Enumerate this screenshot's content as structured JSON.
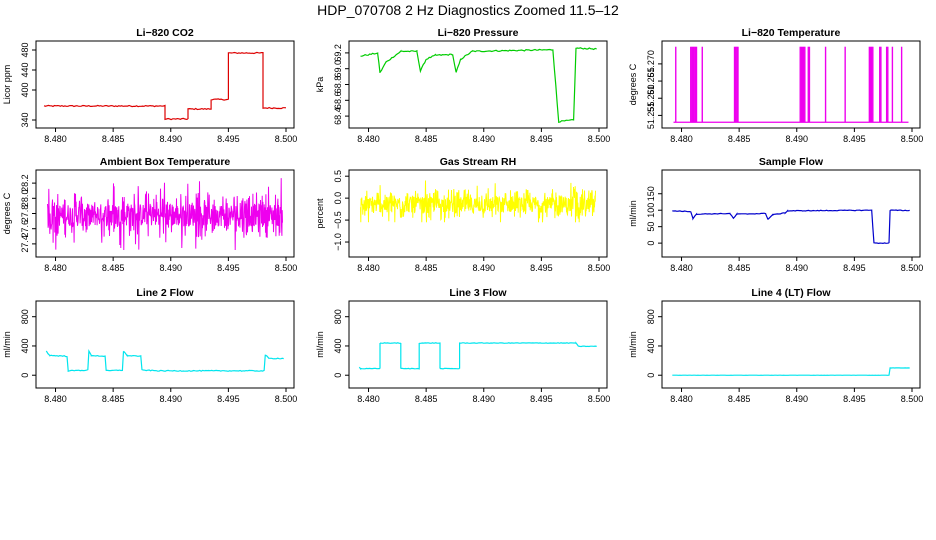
{
  "page": {
    "title": "HDP_070708  2 Hz Diagnostics Zoomed 11.5–12"
  },
  "chart_data": [
    {
      "type": "line",
      "title": "Li−820 CO2",
      "ylabel": "Licor ppm",
      "color": "#dd0000",
      "xlim": [
        8.479,
        8.5
      ],
      "ylim": [
        332,
        490
      ],
      "xticks": [
        8.48,
        8.485,
        8.49,
        8.495,
        8.5
      ],
      "xticklabels": [
        "8.480",
        "8.485",
        "8.490",
        "8.495",
        "8.500"
      ],
      "yticks": [
        340,
        400,
        440,
        480
      ],
      "yticklabels": [
        "340",
        "400",
        "440",
        "480"
      ],
      "noise": 1.2,
      "series": [
        {
          "points": [
            [
              8.479,
              368
            ],
            [
              8.4895,
              368
            ],
            [
              8.4895,
              342
            ],
            [
              8.4915,
              342
            ],
            [
              8.4915,
              362
            ],
            [
              8.4935,
              362
            ],
            [
              8.4935,
              381
            ],
            [
              8.495,
              381
            ],
            [
              8.495,
              474
            ],
            [
              8.498,
              474
            ],
            [
              8.498,
              364
            ],
            [
              8.5,
              364
            ]
          ]
        }
      ]
    },
    {
      "type": "line",
      "title": "Li−820 Pressure",
      "ylabel": "kPa",
      "color": "#00cc00",
      "xlim": [
        8.479,
        8.5
      ],
      "ylim": [
        68.3,
        69.3
      ],
      "xticks": [
        8.48,
        8.485,
        8.49,
        8.495,
        8.5
      ],
      "xticklabels": [
        "8.480",
        "8.485",
        "8.490",
        "8.495",
        "8.500"
      ],
      "yticks": [
        68.4,
        68.6,
        68.8,
        69.0,
        69.2
      ],
      "yticklabels": [
        "68.4",
        "68.6",
        "68.8",
        "69.0",
        "69.2"
      ],
      "noise": 0.008,
      "series": [
        {
          "points": [
            [
              8.4793,
              69.16
            ],
            [
              8.4805,
              69.19
            ],
            [
              8.4808,
              69.19
            ],
            [
              8.481,
              68.95
            ],
            [
              8.4815,
              69.08
            ],
            [
              8.4828,
              69.22
            ],
            [
              8.4842,
              69.22
            ],
            [
              8.4845,
              68.97
            ],
            [
              8.485,
              69.12
            ],
            [
              8.4858,
              69.17
            ],
            [
              8.4873,
              69.18
            ],
            [
              8.4876,
              68.95
            ],
            [
              8.488,
              69.12
            ],
            [
              8.489,
              69.22
            ],
            [
              8.496,
              69.24
            ],
            [
              8.4965,
              68.33
            ],
            [
              8.4978,
              68.35
            ],
            [
              8.498,
              69.26
            ],
            [
              8.4998,
              69.25
            ]
          ]
        }
      ]
    },
    {
      "type": "line",
      "title": "Li−820 Temperature",
      "ylabel": "degrees C",
      "color": "#ee00ee",
      "xlim": [
        8.479,
        8.5
      ],
      "ylim": [
        51.2525,
        51.2755
      ],
      "xticks": [
        8.48,
        8.485,
        8.49,
        8.495,
        8.5
      ],
      "xticklabels": [
        "8.480",
        "8.485",
        "8.490",
        "8.495",
        "8.500"
      ],
      "yticks": [
        51.255,
        51.26,
        51.265,
        51.27
      ],
      "yticklabels": [
        "51.255",
        "51.260",
        "51.265",
        "51.270"
      ],
      "base": 51.253,
      "spike_top": 51.275,
      "spikes": [
        8.4795,
        8.4808,
        8.4809,
        8.481,
        8.4811,
        8.4812,
        8.4813,
        8.4818,
        8.4846,
        8.4847,
        8.4848,
        8.4849,
        8.4903,
        8.4904,
        8.4905,
        8.4906,
        8.4907,
        8.491,
        8.4911,
        8.4925,
        8.4942,
        8.4963,
        8.4964,
        8.4965,
        8.4966,
        8.4972,
        8.4973,
        8.4978,
        8.4979,
        8.4983,
        8.4991
      ]
    },
    {
      "type": "line",
      "title": "Ambient Box Temperature",
      "ylabel": "degrees C",
      "color": "#ee00ee",
      "xlim": [
        8.479,
        8.5
      ],
      "ylim": [
        27.28,
        28.32
      ],
      "xticks": [
        8.48,
        8.485,
        8.49,
        8.495,
        8.5
      ],
      "xticklabels": [
        "8.480",
        "8.485",
        "8.490",
        "8.495",
        "8.500"
      ],
      "yticks": [
        27.4,
        27.6,
        27.8,
        28.0,
        28.2
      ],
      "yticklabels": [
        "27.4",
        "27.6",
        "27.8",
        "28.0",
        "28.2"
      ],
      "noise_band": [
        27.32,
        28.28
      ],
      "center": 27.78
    },
    {
      "type": "line",
      "title": "Gas Stream RH",
      "ylabel": "percent",
      "color": "#ffff00",
      "xlim": [
        8.479,
        8.5
      ],
      "ylim": [
        -1.25,
        0.55
      ],
      "xticks": [
        8.48,
        8.485,
        8.49,
        8.495,
        8.5
      ],
      "xticklabels": [
        "8.480",
        "8.485",
        "8.490",
        "8.495",
        "8.500"
      ],
      "yticks": [
        -1.0,
        -0.5,
        0.0,
        0.5
      ],
      "yticklabels": [
        "−1.0",
        "−0.5",
        "0.0",
        "0.5"
      ],
      "noise_band": [
        -0.55,
        0.45
      ],
      "center": -0.15
    },
    {
      "type": "line",
      "title": "Sample Flow",
      "ylabel": "ml/min",
      "color": "#0000cc",
      "xlim": [
        8.479,
        8.5
      ],
      "ylim": [
        -30,
        210
      ],
      "xticks": [
        8.48,
        8.485,
        8.49,
        8.495,
        8.5
      ],
      "xticklabels": [
        "8.480",
        "8.485",
        "8.490",
        "8.495",
        "8.500"
      ],
      "yticks": [
        0,
        50,
        100,
        150
      ],
      "yticklabels": [
        "0",
        "50",
        "100",
        "150"
      ],
      "noise": 1.0,
      "series": [
        {
          "points": [
            [
              8.4792,
              98
            ],
            [
              8.4808,
              96
            ],
            [
              8.481,
              75
            ],
            [
              8.4813,
              88
            ],
            [
              8.4842,
              90
            ],
            [
              8.4845,
              75
            ],
            [
              8.4848,
              88
            ],
            [
              8.4873,
              90
            ],
            [
              8.4875,
              72
            ],
            [
              8.4879,
              86
            ],
            [
              8.489,
              92
            ],
            [
              8.4892,
              98
            ],
            [
              8.4965,
              100
            ],
            [
              8.4967,
              0
            ],
            [
              8.498,
              0
            ],
            [
              8.4981,
              100
            ],
            [
              8.4998,
              99
            ]
          ]
        }
      ]
    },
    {
      "type": "line",
      "title": "Line 2 Flow",
      "ylabel": "ml/min",
      "color": "#00e5ee",
      "xlim": [
        8.479,
        8.5
      ],
      "ylim": [
        -120,
        960
      ],
      "xticks": [
        8.48,
        8.485,
        8.49,
        8.495,
        8.5
      ],
      "xticklabels": [
        "8.480",
        "8.485",
        "8.490",
        "8.495",
        "8.500"
      ],
      "yticks": [
        0,
        400,
        800
      ],
      "yticklabels": [
        "0",
        "400",
        "800"
      ],
      "noise": 6,
      "series": [
        {
          "points": [
            [
              8.4792,
              330
            ],
            [
              8.4795,
              270
            ],
            [
              8.481,
              260
            ],
            [
              8.4811,
              60
            ],
            [
              8.4828,
              70
            ],
            [
              8.4829,
              330
            ],
            [
              8.4831,
              270
            ],
            [
              8.4843,
              260
            ],
            [
              8.4844,
              60
            ],
            [
              8.4858,
              70
            ],
            [
              8.4859,
              330
            ],
            [
              8.4862,
              270
            ],
            [
              8.4874,
              260
            ],
            [
              8.4875,
              70
            ],
            [
              8.489,
              60
            ],
            [
              8.4981,
              60
            ],
            [
              8.4982,
              280
            ],
            [
              8.4985,
              230
            ],
            [
              8.4998,
              230
            ]
          ]
        }
      ]
    },
    {
      "type": "line",
      "title": "Line 3 Flow",
      "ylabel": "ml/min",
      "color": "#00e5ee",
      "xlim": [
        8.479,
        8.5
      ],
      "ylim": [
        -120,
        960
      ],
      "xticks": [
        8.48,
        8.485,
        8.49,
        8.495,
        8.5
      ],
      "xticklabels": [
        "8.480",
        "8.485",
        "8.490",
        "8.495",
        "8.500"
      ],
      "yticks": [
        0,
        400,
        800
      ],
      "yticklabels": [
        "0",
        "400",
        "800"
      ],
      "noise": 4,
      "series": [
        {
          "points": [
            [
              8.4792,
              110
            ],
            [
              8.4793,
              90
            ],
            [
              8.481,
              90
            ],
            [
              8.481,
              440
            ],
            [
              8.4828,
              440
            ],
            [
              8.4828,
              90
            ],
            [
              8.4844,
              90
            ],
            [
              8.4844,
              440
            ],
            [
              8.4862,
              440
            ],
            [
              8.4862,
              90
            ],
            [
              8.4879,
              90
            ],
            [
              8.4879,
              440
            ],
            [
              8.498,
              440
            ],
            [
              8.4982,
              395
            ],
            [
              8.4998,
              395
            ]
          ]
        }
      ]
    },
    {
      "type": "line",
      "title": "Line 4 (LT) Flow",
      "ylabel": "ml/min",
      "color": "#00e5ee",
      "xlim": [
        8.479,
        8.5
      ],
      "ylim": [
        -120,
        960
      ],
      "xticks": [
        8.48,
        8.485,
        8.49,
        8.495,
        8.5
      ],
      "xticklabels": [
        "8.480",
        "8.485",
        "8.490",
        "8.495",
        "8.500"
      ],
      "yticks": [
        0,
        400,
        800
      ],
      "yticklabels": [
        "0",
        "400",
        "800"
      ],
      "noise": 1,
      "series": [
        {
          "points": [
            [
              8.4792,
              0
            ],
            [
              8.498,
              0
            ],
            [
              8.4981,
              100
            ],
            [
              8.4998,
              100
            ]
          ]
        }
      ]
    }
  ]
}
